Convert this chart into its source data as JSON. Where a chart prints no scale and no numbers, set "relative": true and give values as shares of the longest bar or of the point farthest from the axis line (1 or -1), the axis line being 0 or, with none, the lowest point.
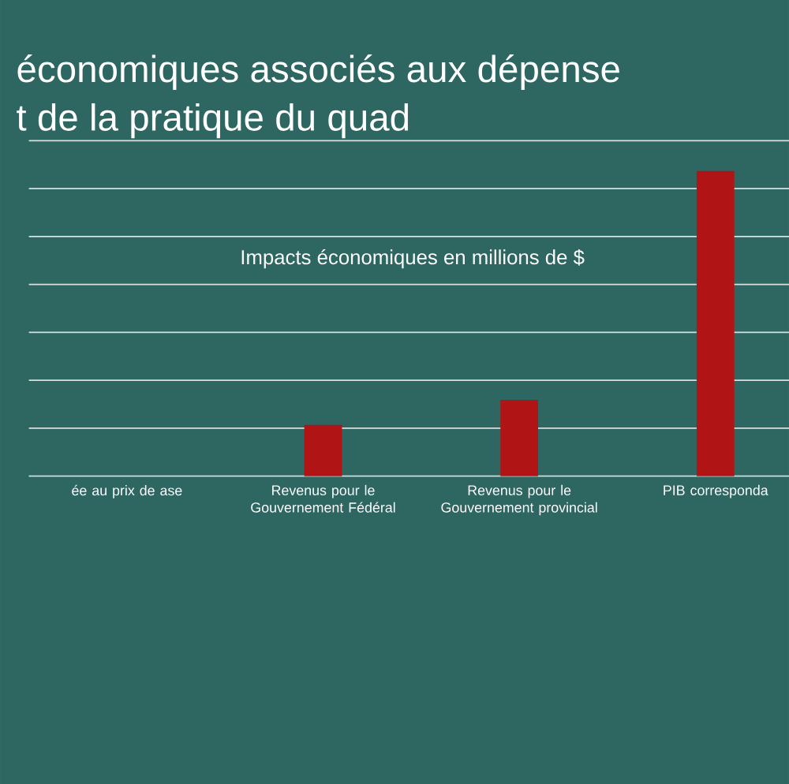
{
  "chart_data": {
    "type": "bar",
    "title": "économiques associés aux dépense",
    "subtitle": "t de la pratique du quad",
    "annotations": [
      "Impacts économiques en millions de $"
    ],
    "categories": [
      "ée au prix de ase",
      "Revenus pour le Gouvernement Fédéral",
      "Revenus pour le Gouvernement provincial",
      "PIB corresponda"
    ],
    "values": [
      null,
      0.168,
      0.25,
      1
    ],
    "color": "#b01414",
    "relative": true,
    "grid": "y"
  }
}
